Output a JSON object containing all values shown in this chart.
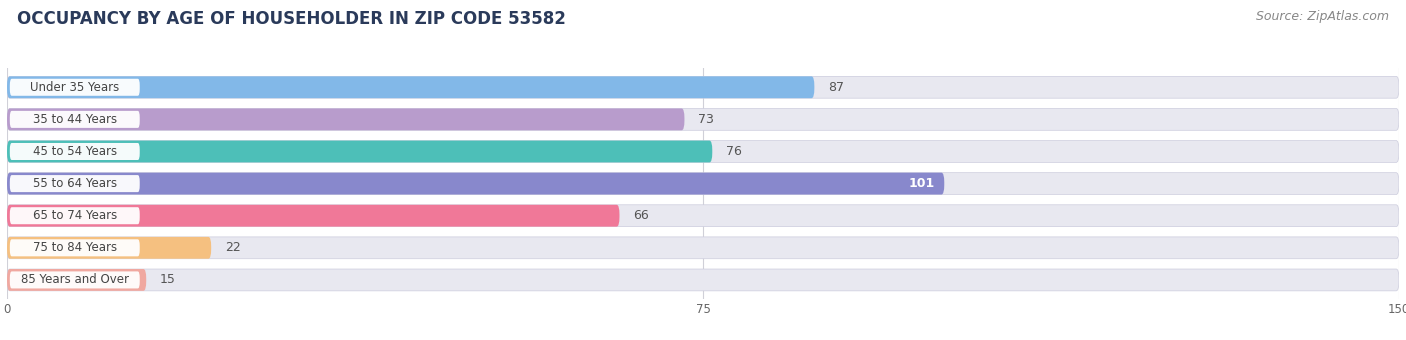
{
  "title": "OCCUPANCY BY AGE OF HOUSEHOLDER IN ZIP CODE 53582",
  "source": "Source: ZipAtlas.com",
  "categories": [
    "Under 35 Years",
    "35 to 44 Years",
    "45 to 54 Years",
    "55 to 64 Years",
    "65 to 74 Years",
    "75 to 84 Years",
    "85 Years and Over"
  ],
  "values": [
    87,
    73,
    76,
    101,
    66,
    22,
    15
  ],
  "bar_colors": [
    "#82b8e8",
    "#b89ccc",
    "#4dbfb8",
    "#8888cc",
    "#f07898",
    "#f5c080",
    "#f0a8a0"
  ],
  "bar_bg_color": "#e8e8f0",
  "xlim": [
    0,
    150
  ],
  "xticks": [
    0,
    75,
    150
  ],
  "title_fontsize": 12,
  "source_fontsize": 9,
  "bar_label_fontsize": 9,
  "cat_label_fontsize": 8.5,
  "background_color": "#ffffff",
  "label_pill_color": "#ffffff",
  "grid_color": "#d0d0d8",
  "text_color": "#444444",
  "value_inside_color": "#ffffff",
  "value_outside_color": "#555555"
}
